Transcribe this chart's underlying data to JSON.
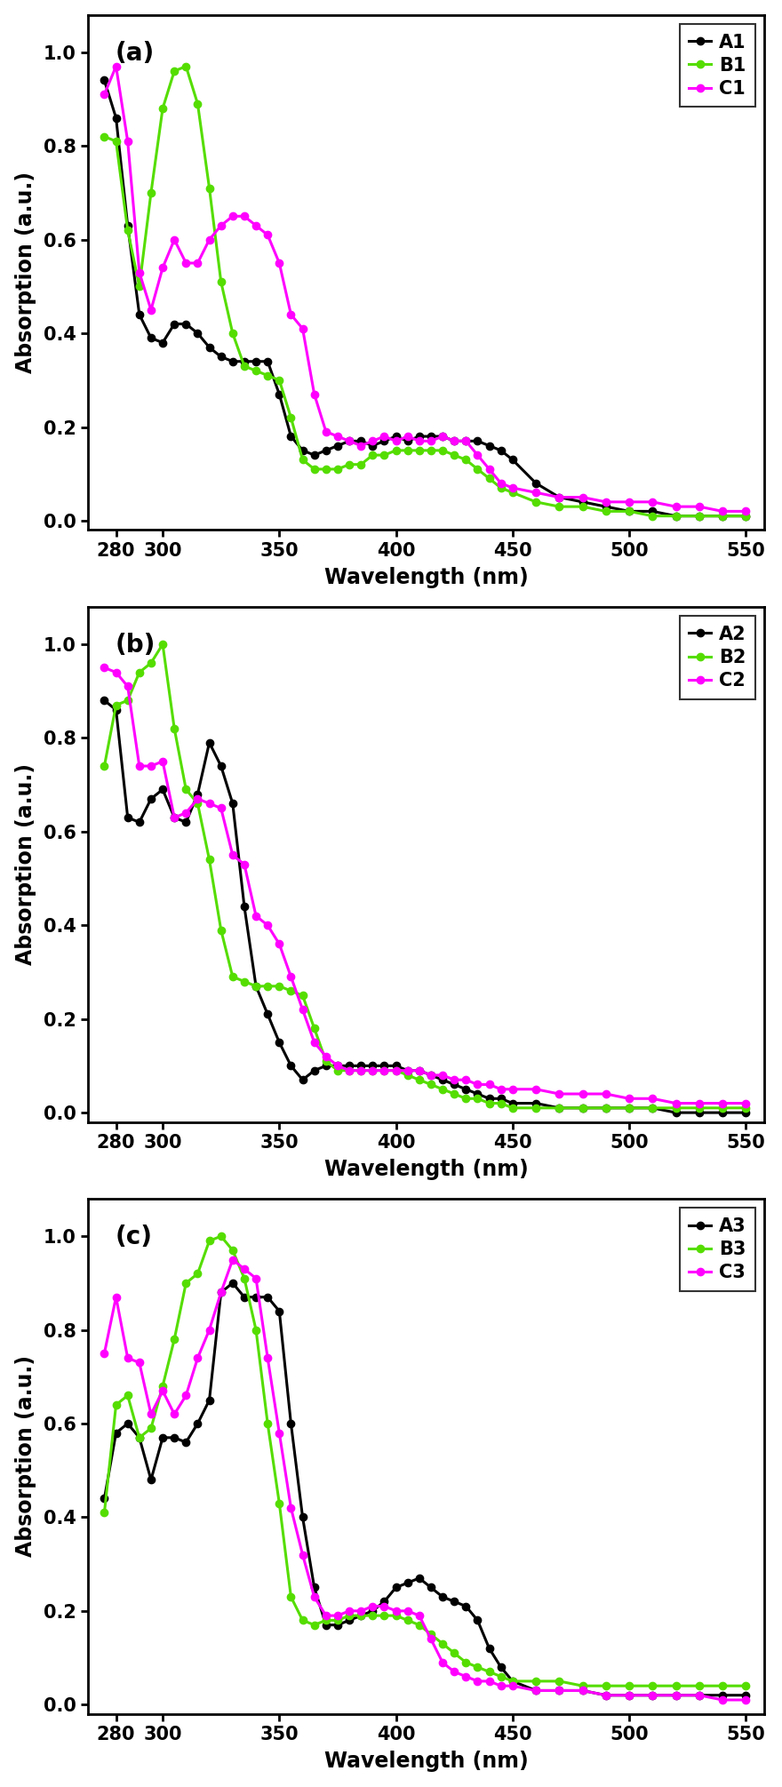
{
  "panel_a": {
    "label": "(a)",
    "A1": {
      "color": "#000000",
      "x": [
        275,
        280,
        285,
        290,
        295,
        300,
        305,
        310,
        315,
        320,
        325,
        330,
        335,
        340,
        345,
        350,
        355,
        360,
        365,
        370,
        375,
        380,
        385,
        390,
        395,
        400,
        405,
        410,
        415,
        420,
        425,
        430,
        435,
        440,
        445,
        450,
        460,
        470,
        480,
        490,
        500,
        510,
        520,
        530,
        540,
        550
      ],
      "y": [
        0.94,
        0.86,
        0.63,
        0.44,
        0.39,
        0.38,
        0.42,
        0.42,
        0.4,
        0.37,
        0.35,
        0.34,
        0.34,
        0.34,
        0.34,
        0.27,
        0.18,
        0.15,
        0.14,
        0.15,
        0.16,
        0.17,
        0.17,
        0.16,
        0.17,
        0.18,
        0.17,
        0.18,
        0.18,
        0.18,
        0.17,
        0.17,
        0.17,
        0.16,
        0.15,
        0.13,
        0.08,
        0.05,
        0.04,
        0.03,
        0.02,
        0.02,
        0.01,
        0.01,
        0.01,
        0.01
      ]
    },
    "B1": {
      "color": "#55dd00",
      "x": [
        275,
        280,
        285,
        290,
        295,
        300,
        305,
        310,
        315,
        320,
        325,
        330,
        335,
        340,
        345,
        350,
        355,
        360,
        365,
        370,
        375,
        380,
        385,
        390,
        395,
        400,
        405,
        410,
        415,
        420,
        425,
        430,
        435,
        440,
        445,
        450,
        460,
        470,
        480,
        490,
        500,
        510,
        520,
        530,
        540,
        550
      ],
      "y": [
        0.82,
        0.81,
        0.62,
        0.5,
        0.7,
        0.88,
        0.96,
        0.97,
        0.89,
        0.71,
        0.51,
        0.4,
        0.33,
        0.32,
        0.31,
        0.3,
        0.22,
        0.13,
        0.11,
        0.11,
        0.11,
        0.12,
        0.12,
        0.14,
        0.14,
        0.15,
        0.15,
        0.15,
        0.15,
        0.15,
        0.14,
        0.13,
        0.11,
        0.09,
        0.07,
        0.06,
        0.04,
        0.03,
        0.03,
        0.02,
        0.02,
        0.01,
        0.01,
        0.01,
        0.01,
        0.01
      ]
    },
    "C1": {
      "color": "#ff00ff",
      "x": [
        275,
        280,
        285,
        290,
        295,
        300,
        305,
        310,
        315,
        320,
        325,
        330,
        335,
        340,
        345,
        350,
        355,
        360,
        365,
        370,
        375,
        380,
        385,
        390,
        395,
        400,
        405,
        410,
        415,
        420,
        425,
        430,
        435,
        440,
        445,
        450,
        460,
        470,
        480,
        490,
        500,
        510,
        520,
        530,
        540,
        550
      ],
      "y": [
        0.91,
        0.97,
        0.81,
        0.53,
        0.45,
        0.54,
        0.6,
        0.55,
        0.55,
        0.6,
        0.63,
        0.65,
        0.65,
        0.63,
        0.61,
        0.55,
        0.44,
        0.41,
        0.27,
        0.19,
        0.18,
        0.17,
        0.16,
        0.17,
        0.18,
        0.17,
        0.18,
        0.17,
        0.17,
        0.18,
        0.17,
        0.17,
        0.14,
        0.11,
        0.08,
        0.07,
        0.06,
        0.05,
        0.05,
        0.04,
        0.04,
        0.04,
        0.03,
        0.03,
        0.02,
        0.02
      ]
    }
  },
  "panel_b": {
    "label": "(b)",
    "A2": {
      "color": "#000000",
      "x": [
        275,
        280,
        285,
        290,
        295,
        300,
        305,
        310,
        315,
        320,
        325,
        330,
        335,
        340,
        345,
        350,
        355,
        360,
        365,
        370,
        375,
        380,
        385,
        390,
        395,
        400,
        405,
        410,
        415,
        420,
        425,
        430,
        435,
        440,
        445,
        450,
        460,
        470,
        480,
        490,
        500,
        510,
        520,
        530,
        540,
        550
      ],
      "y": [
        0.88,
        0.86,
        0.63,
        0.62,
        0.67,
        0.69,
        0.63,
        0.62,
        0.68,
        0.79,
        0.74,
        0.66,
        0.44,
        0.27,
        0.21,
        0.15,
        0.1,
        0.07,
        0.09,
        0.1,
        0.1,
        0.1,
        0.1,
        0.1,
        0.1,
        0.1,
        0.09,
        0.09,
        0.08,
        0.07,
        0.06,
        0.05,
        0.04,
        0.03,
        0.03,
        0.02,
        0.02,
        0.01,
        0.01,
        0.01,
        0.01,
        0.01,
        0.0,
        0.0,
        0.0,
        0.0
      ]
    },
    "B2": {
      "color": "#55dd00",
      "x": [
        275,
        280,
        285,
        290,
        295,
        300,
        305,
        310,
        315,
        320,
        325,
        330,
        335,
        340,
        345,
        350,
        355,
        360,
        365,
        370,
        375,
        380,
        385,
        390,
        395,
        400,
        405,
        410,
        415,
        420,
        425,
        430,
        435,
        440,
        445,
        450,
        460,
        470,
        480,
        490,
        500,
        510,
        520,
        530,
        540,
        550
      ],
      "y": [
        0.74,
        0.87,
        0.88,
        0.94,
        0.96,
        1.0,
        0.82,
        0.69,
        0.66,
        0.54,
        0.39,
        0.29,
        0.28,
        0.27,
        0.27,
        0.27,
        0.26,
        0.25,
        0.18,
        0.11,
        0.09,
        0.09,
        0.09,
        0.09,
        0.09,
        0.09,
        0.08,
        0.07,
        0.06,
        0.05,
        0.04,
        0.03,
        0.03,
        0.02,
        0.02,
        0.01,
        0.01,
        0.01,
        0.01,
        0.01,
        0.01,
        0.01,
        0.01,
        0.01,
        0.01,
        0.01
      ]
    },
    "C2": {
      "color": "#ff00ff",
      "x": [
        275,
        280,
        285,
        290,
        295,
        300,
        305,
        310,
        315,
        320,
        325,
        330,
        335,
        340,
        345,
        350,
        355,
        360,
        365,
        370,
        375,
        380,
        385,
        390,
        395,
        400,
        405,
        410,
        415,
        420,
        425,
        430,
        435,
        440,
        445,
        450,
        460,
        470,
        480,
        490,
        500,
        510,
        520,
        530,
        540,
        550
      ],
      "y": [
        0.95,
        0.94,
        0.91,
        0.74,
        0.74,
        0.75,
        0.63,
        0.64,
        0.67,
        0.66,
        0.65,
        0.55,
        0.53,
        0.42,
        0.4,
        0.36,
        0.29,
        0.22,
        0.15,
        0.12,
        0.1,
        0.09,
        0.09,
        0.09,
        0.09,
        0.09,
        0.09,
        0.09,
        0.08,
        0.08,
        0.07,
        0.07,
        0.06,
        0.06,
        0.05,
        0.05,
        0.05,
        0.04,
        0.04,
        0.04,
        0.03,
        0.03,
        0.02,
        0.02,
        0.02,
        0.02
      ]
    }
  },
  "panel_c": {
    "label": "(c)",
    "A3": {
      "color": "#000000",
      "x": [
        275,
        280,
        285,
        290,
        295,
        300,
        305,
        310,
        315,
        320,
        325,
        330,
        335,
        340,
        345,
        350,
        355,
        360,
        365,
        370,
        375,
        380,
        385,
        390,
        395,
        400,
        405,
        410,
        415,
        420,
        425,
        430,
        435,
        440,
        445,
        450,
        460,
        470,
        480,
        490,
        500,
        510,
        520,
        530,
        540,
        550
      ],
      "y": [
        0.44,
        0.58,
        0.6,
        0.57,
        0.48,
        0.57,
        0.57,
        0.56,
        0.6,
        0.65,
        0.88,
        0.9,
        0.87,
        0.87,
        0.87,
        0.84,
        0.6,
        0.4,
        0.25,
        0.17,
        0.17,
        0.18,
        0.19,
        0.2,
        0.22,
        0.25,
        0.26,
        0.27,
        0.25,
        0.23,
        0.22,
        0.21,
        0.18,
        0.12,
        0.08,
        0.05,
        0.03,
        0.03,
        0.03,
        0.02,
        0.02,
        0.02,
        0.02,
        0.02,
        0.02,
        0.02
      ]
    },
    "B3": {
      "color": "#55dd00",
      "x": [
        275,
        280,
        285,
        290,
        295,
        300,
        305,
        310,
        315,
        320,
        325,
        330,
        335,
        340,
        345,
        350,
        355,
        360,
        365,
        370,
        375,
        380,
        385,
        390,
        395,
        400,
        405,
        410,
        415,
        420,
        425,
        430,
        435,
        440,
        445,
        450,
        460,
        470,
        480,
        490,
        500,
        510,
        520,
        530,
        540,
        550
      ],
      "y": [
        0.41,
        0.64,
        0.66,
        0.57,
        0.59,
        0.68,
        0.78,
        0.9,
        0.92,
        0.99,
        1.0,
        0.97,
        0.91,
        0.8,
        0.6,
        0.43,
        0.23,
        0.18,
        0.17,
        0.18,
        0.18,
        0.19,
        0.19,
        0.19,
        0.19,
        0.19,
        0.18,
        0.17,
        0.15,
        0.13,
        0.11,
        0.09,
        0.08,
        0.07,
        0.06,
        0.05,
        0.05,
        0.05,
        0.04,
        0.04,
        0.04,
        0.04,
        0.04,
        0.04,
        0.04,
        0.04
      ]
    },
    "C3": {
      "color": "#ff00ff",
      "x": [
        275,
        280,
        285,
        290,
        295,
        300,
        305,
        310,
        315,
        320,
        325,
        330,
        335,
        340,
        345,
        350,
        355,
        360,
        365,
        370,
        375,
        380,
        385,
        390,
        395,
        400,
        405,
        410,
        415,
        420,
        425,
        430,
        435,
        440,
        445,
        450,
        460,
        470,
        480,
        490,
        500,
        510,
        520,
        530,
        540,
        550
      ],
      "y": [
        0.75,
        0.87,
        0.74,
        0.73,
        0.62,
        0.67,
        0.62,
        0.66,
        0.74,
        0.8,
        0.88,
        0.95,
        0.93,
        0.91,
        0.74,
        0.58,
        0.42,
        0.32,
        0.23,
        0.19,
        0.19,
        0.2,
        0.2,
        0.21,
        0.21,
        0.2,
        0.2,
        0.19,
        0.14,
        0.09,
        0.07,
        0.06,
        0.05,
        0.05,
        0.04,
        0.04,
        0.03,
        0.03,
        0.03,
        0.02,
        0.02,
        0.02,
        0.02,
        0.02,
        0.01,
        0.01
      ]
    }
  },
  "xlim": [
    268,
    558
  ],
  "ylim": [
    -0.02,
    1.08
  ],
  "xticks": [
    280,
    300,
    350,
    400,
    450,
    500,
    550
  ],
  "yticks": [
    0.0,
    0.2,
    0.4,
    0.6,
    0.8,
    1.0
  ],
  "xlabel": "Wavelength (nm)",
  "ylabel": "Absorption (a.u.)",
  "marker": "o",
  "markersize": 6,
  "linewidth": 2.2,
  "background_color": "#ffffff",
  "tick_fontsize": 15,
  "label_fontsize": 17,
  "legend_fontsize": 15,
  "panel_label_fontsize": 20
}
